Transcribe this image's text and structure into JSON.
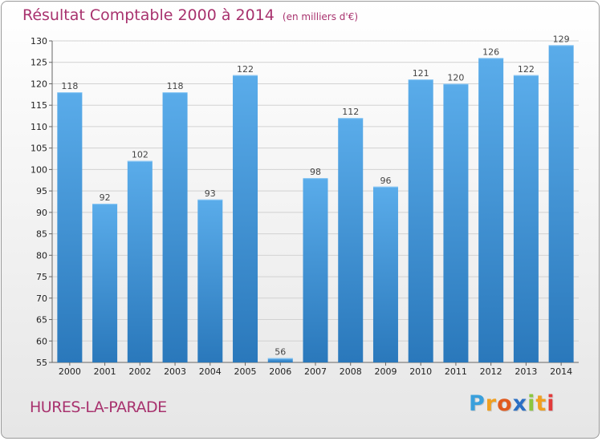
{
  "chart_data": {
    "type": "bar",
    "title": "Résultat Comptable 2000 à 2014",
    "subtitle": "(en milliers d'€)",
    "categories": [
      "2000",
      "2001",
      "2002",
      "2003",
      "2004",
      "2005",
      "2006",
      "2007",
      "2008",
      "2009",
      "2010",
      "2011",
      "2012",
      "2013",
      "2014"
    ],
    "values": [
      118,
      92,
      102,
      118,
      93,
      122,
      56,
      98,
      112,
      96,
      121,
      120,
      126,
      122,
      129
    ],
    "ylim": [
      55,
      130
    ],
    "yticks": [
      55,
      60,
      65,
      70,
      75,
      80,
      85,
      90,
      95,
      100,
      105,
      110,
      115,
      120,
      125,
      130
    ],
    "grid": true,
    "bar_color": "#3a8fd6"
  },
  "commune": "HURES-LA-PARADE",
  "logo": {
    "letters": [
      "P",
      "r",
      "o",
      "x",
      "i",
      "t",
      "i"
    ],
    "colors": [
      "#3aa0dc",
      "#f0a020",
      "#e05a1e",
      "#2a6fc4",
      "#8cc63f",
      "#f0a020",
      "#e23a3a"
    ]
  }
}
